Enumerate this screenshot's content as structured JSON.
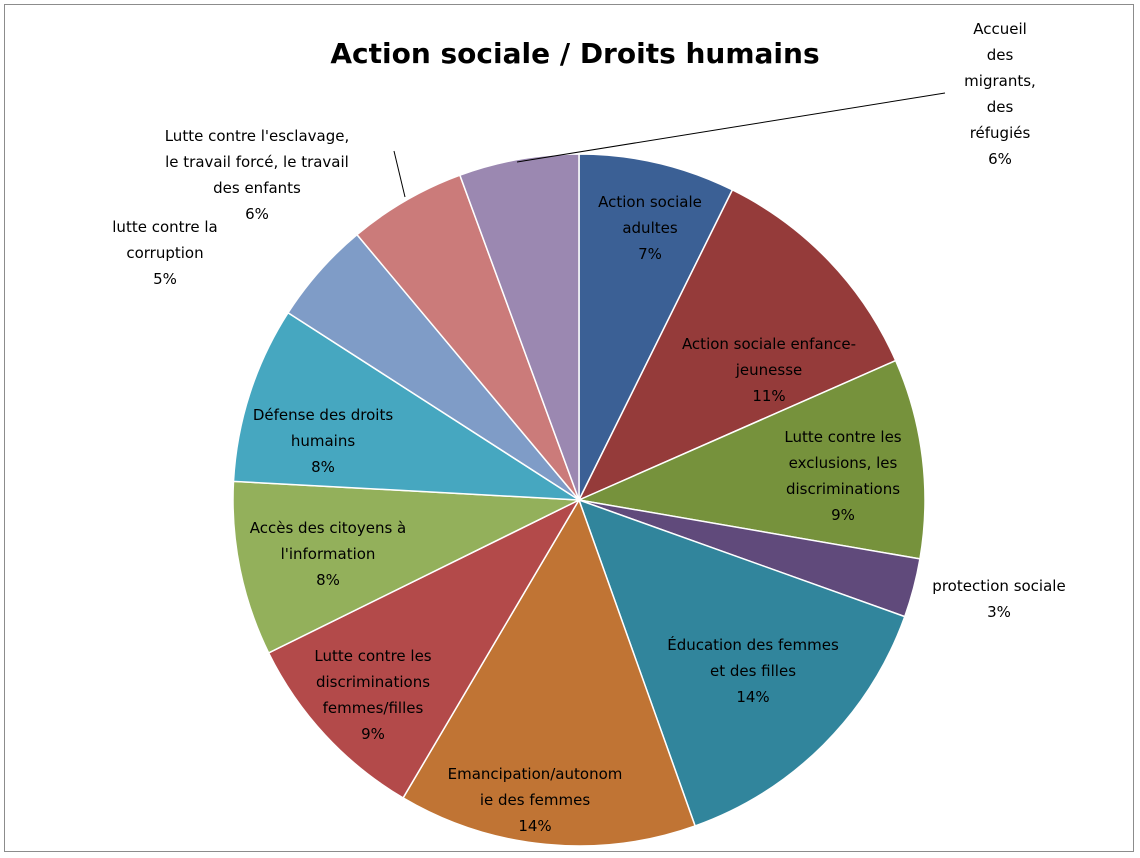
{
  "chart_data": {
    "type": "pie",
    "title": "Action sociale / Droits humains",
    "start_angle_deg": 0,
    "direction": "clockwise",
    "slices": [
      {
        "name": "Action sociale adultes",
        "lines": [
          "Action sociale",
          "adultes"
        ],
        "pct_label": "7%",
        "value": 7.45,
        "color": "#3B6095"
      },
      {
        "name": "Action sociale enfance-jeunesse",
        "lines": [
          "Action sociale enfance-",
          "jeunesse"
        ],
        "pct_label": "11%",
        "value": 11.3,
        "color": "#953B3A"
      },
      {
        "name": "Lutte contre les exclusions, les discriminations",
        "lines": [
          "Lutte contre les",
          "exclusions, les",
          "discriminations"
        ],
        "pct_label": "9%",
        "value": 9.5,
        "color": "#76923C"
      },
      {
        "name": "protection sociale",
        "lines": [
          "protection sociale"
        ],
        "pct_label": "3%",
        "value": 2.8,
        "color": "#604A7B"
      },
      {
        "name": "Éducation des femmes et des filles",
        "lines": [
          "Éducation des femmes",
          "et des filles"
        ],
        "pct_label": "14%",
        "value": 14.35,
        "color": "#31859C"
      },
      {
        "name": "Emancipation/autonomie des femmes",
        "lines": [
          "Emancipation/autonom",
          "ie des femmes"
        ],
        "pct_label": "14%",
        "value": 14.2,
        "color": "#C07434"
      },
      {
        "name": "Lutte contre les discriminations femmes/filles",
        "lines": [
          "Lutte contre les",
          "discriminations",
          "femmes/filles"
        ],
        "pct_label": "9%",
        "value": 9.4,
        "color": "#B34A4A"
      },
      {
        "name": "Accès des citoyens à l'information",
        "lines": [
          "Accès des citoyens à",
          "l'information"
        ],
        "pct_label": "8%",
        "value": 8.3,
        "color": "#93B05B"
      },
      {
        "name": "Défense des droits humains",
        "lines": [
          "Défense des droits",
          "humains"
        ],
        "pct_label": "8%",
        "value": 8.4,
        "color": "#46A7C0"
      },
      {
        "name": "lutte contre la corruption",
        "lines": [
          "lutte contre la",
          "corruption"
        ],
        "pct_label": "5%",
        "value": 4.9,
        "color": "#7F9CC7"
      },
      {
        "name": "Lutte contre l'esclavage, le travail forcé, le travail des enfants",
        "lines": [
          "Lutte contre l'esclavage,",
          "le travail forcé, le travail",
          "des enfants"
        ],
        "pct_label": "6%",
        "value": 5.6,
        "color": "#CB7B7A"
      },
      {
        "name": "Accueil des migrants, des réfugiés",
        "lines": [
          "Accueil",
          "des",
          "migrants,",
          "des",
          "réfugiés"
        ],
        "pct_label": "6%",
        "value": 5.7,
        "color": "#9B88B1"
      }
    ],
    "legend": "none"
  }
}
